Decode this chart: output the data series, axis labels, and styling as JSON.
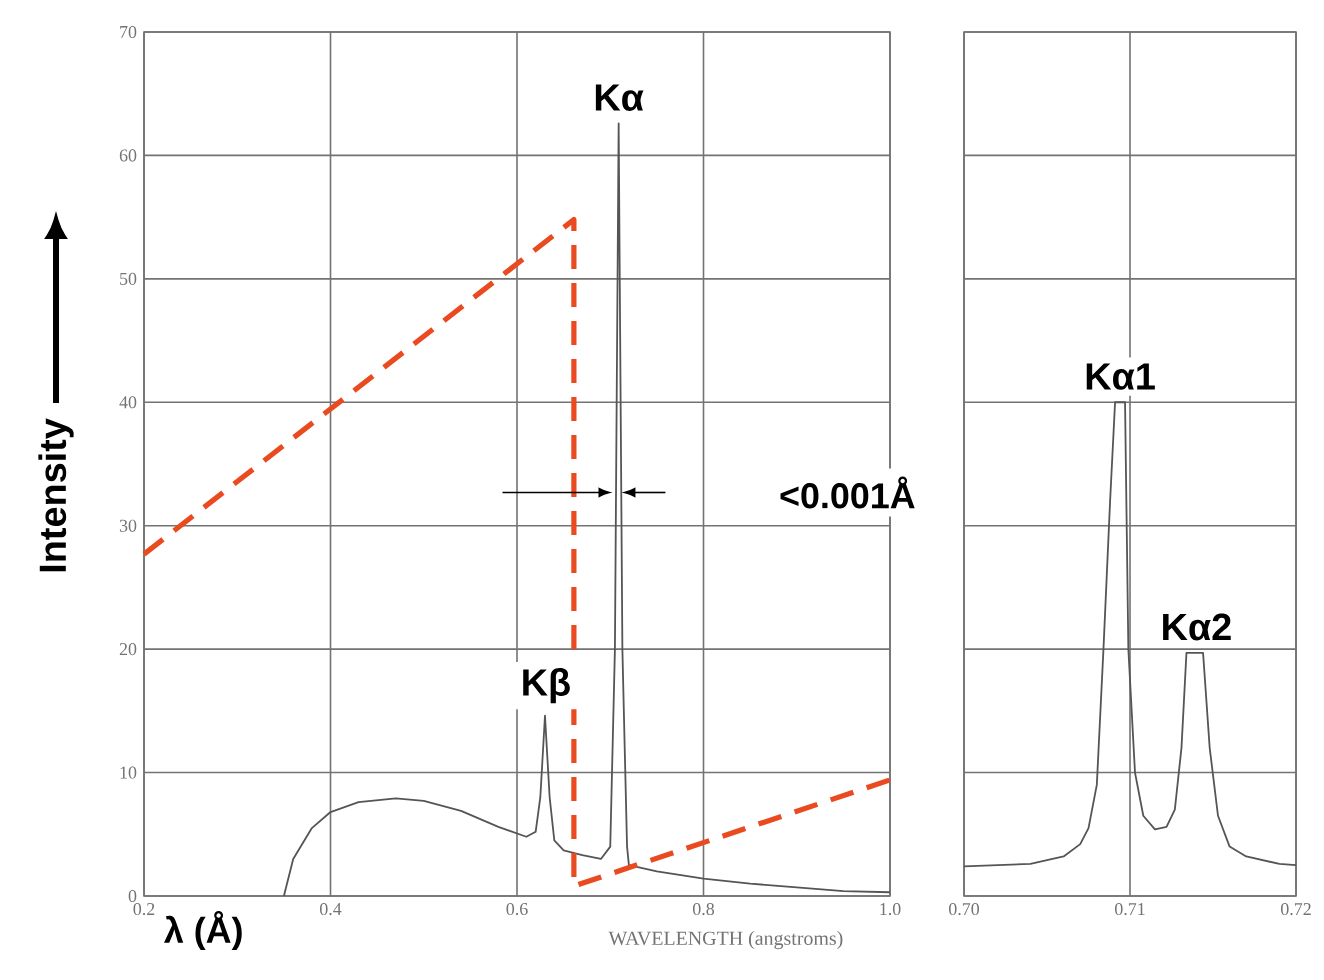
{
  "chart_data": [
    {
      "type": "line",
      "xlabel": "λ (Å)",
      "ylabel": "Intensity",
      "xlim": [
        0.2,
        1.0
      ],
      "ylim": [
        0,
        70
      ],
      "xticks": [
        0.2,
        0.4,
        0.6,
        0.8,
        {
          "value": 1.0,
          "label": "1.0"
        }
      ],
      "yticks": [
        0,
        10,
        20,
        30,
        40,
        50,
        60,
        70
      ],
      "grid": true,
      "annotations": [
        "WAVELENGTH (angstroms)",
        "<0.001Å",
        {
          "text": "Kα",
          "x": 0.709,
          "y": 62.6
        },
        {
          "text": "Kβ",
          "x": 0.631,
          "y": 14.6
        }
      ],
      "series": [
        {
          "color": "#555555",
          "x": [
            0.35,
            0.36,
            0.38,
            0.4,
            0.43,
            0.47,
            0.5,
            0.54,
            0.58,
            0.61,
            0.62,
            0.625,
            0.63,
            0.635,
            0.64,
            0.65,
            0.67,
            0.69,
            0.7,
            0.705,
            0.709,
            0.713,
            0.718,
            0.72,
            0.75,
            0.8,
            0.85,
            0.9,
            0.95,
            1.0
          ],
          "values": [
            0,
            3,
            5.5,
            6.8,
            7.6,
            7.9,
            7.7,
            6.9,
            5.6,
            4.8,
            5.2,
            8,
            14.6,
            8,
            4.5,
            3.7,
            3.3,
            3.0,
            4,
            20,
            62.6,
            20,
            4,
            2.5,
            2.0,
            1.4,
            1.0,
            0.7,
            0.4,
            0.3
          ]
        },
        {
          "color": "#ea4a1f",
          "line_style": "dashed",
          "x": [
            0.2,
            0.661,
            0.661,
            1.0
          ],
          "values": [
            27.7,
            54.8,
            0.8,
            9.4
          ]
        }
      ]
    },
    {
      "type": "line",
      "xlim": [
        0.7,
        0.72
      ],
      "ylim": [
        0,
        70
      ],
      "tick_labels": "x",
      "xticks": [
        {
          "value": 0.7,
          "label": "0.70"
        },
        0.71,
        {
          "value": 0.72,
          "label": "0.72"
        }
      ],
      "yticks": [
        0,
        10,
        20,
        30,
        40,
        50,
        60,
        70
      ],
      "grid": true,
      "annotations": [
        {
          "text": "Kα1",
          "x": 0.7094,
          "y": 40
        },
        {
          "text": "Kα2",
          "x": 0.714,
          "y": 19.7
        }
      ],
      "series": [
        {
          "color": "#555555",
          "x": [
            0.7,
            0.704,
            0.706,
            0.707,
            0.7075,
            0.708,
            0.7084,
            0.7088,
            0.7091,
            0.7097,
            0.7099,
            0.7103,
            0.7108,
            0.7115,
            0.7122,
            0.7127,
            0.7131,
            0.7134,
            0.7144,
            0.7148,
            0.7153,
            0.716,
            0.717,
            0.719,
            0.72
          ],
          "values": [
            2.4,
            2.6,
            3.2,
            4.2,
            5.5,
            9,
            20,
            32,
            40,
            40,
            20,
            10,
            6.5,
            5.4,
            5.6,
            7,
            12,
            19.7,
            19.7,
            12,
            6.5,
            4,
            3.2,
            2.6,
            2.5
          ]
        }
      ]
    }
  ]
}
